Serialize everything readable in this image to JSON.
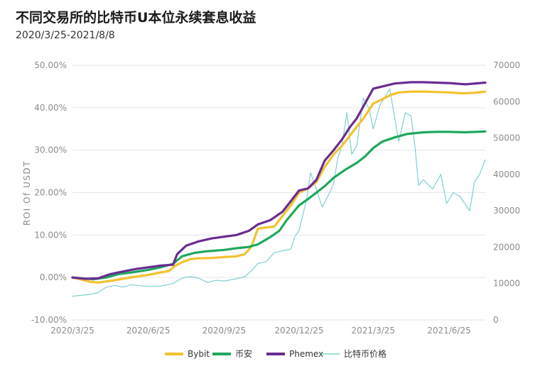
{
  "header": {
    "title": "不同交易所的比特币U本位永续套息收益",
    "subtitle": "2020/3/25-2021/8/8"
  },
  "chart_data": {
    "type": "line",
    "title": "不同交易所的比特币U本位永续套息收益",
    "subtitle": "2020/3/25-2021/8/8",
    "ylabel": "ROI Of USDT",
    "y2label": "",
    "ylim": [
      -10,
      50
    ],
    "y2lim": [
      0,
      70000
    ],
    "x_ticks": [
      "2020/3/25",
      "2020/6/25",
      "2020/9/25",
      "2020/12/25",
      "2021/3/25",
      "2021/6/25"
    ],
    "y_ticks": [
      "-10.00%",
      "0.00%",
      "10.00%",
      "20.00%",
      "30.00%",
      "40.00%",
      "50.00%"
    ],
    "y2_ticks": [
      "0",
      "10000",
      "20000",
      "30000",
      "40000",
      "50000",
      "60000",
      "70000"
    ],
    "x_start": "2020-03-25",
    "x_end": "2021-08-08",
    "grid": "horizontal",
    "legend_position": "bottom",
    "series": [
      {
        "name": "Bybit",
        "axis": "left",
        "color": "#F2C22E",
        "points": [
          [
            "2020-03-25",
            0.0
          ],
          [
            "2020-04-05",
            -0.5
          ],
          [
            "2020-04-15",
            -1.0
          ],
          [
            "2020-04-25",
            -1.2
          ],
          [
            "2020-05-10",
            -0.8
          ],
          [
            "2020-05-25",
            -0.3
          ],
          [
            "2020-06-10",
            0.2
          ],
          [
            "2020-06-25",
            0.6
          ],
          [
            "2020-07-10",
            1.2
          ],
          [
            "2020-07-20",
            1.5
          ],
          [
            "2020-07-28",
            2.8
          ],
          [
            "2020-08-05",
            3.6
          ],
          [
            "2020-08-15",
            4.3
          ],
          [
            "2020-08-25",
            4.5
          ],
          [
            "2020-09-10",
            4.6
          ],
          [
            "2020-09-25",
            4.8
          ],
          [
            "2020-10-10",
            5.0
          ],
          [
            "2020-10-20",
            5.5
          ],
          [
            "2020-10-28",
            7.2
          ],
          [
            "2020-11-05",
            11.5
          ],
          [
            "2020-11-15",
            11.8
          ],
          [
            "2020-11-25",
            12.0
          ],
          [
            "2020-12-05",
            14.5
          ],
          [
            "2020-12-15",
            17.0
          ],
          [
            "2020-12-25",
            20.0
          ],
          [
            "2021-01-05",
            21.0
          ],
          [
            "2021-01-15",
            22.5
          ],
          [
            "2021-01-25",
            26.0
          ],
          [
            "2021-02-05",
            29.0
          ],
          [
            "2021-02-15",
            31.0
          ],
          [
            "2021-02-25",
            33.5
          ],
          [
            "2021-03-05",
            35.5
          ],
          [
            "2021-03-15",
            38.0
          ],
          [
            "2021-03-25",
            41.0
          ],
          [
            "2021-04-05",
            42.0
          ],
          [
            "2021-04-15",
            43.0
          ],
          [
            "2021-04-25",
            43.6
          ],
          [
            "2021-05-10",
            43.8
          ],
          [
            "2021-05-25",
            43.8
          ],
          [
            "2021-06-10",
            43.7
          ],
          [
            "2021-06-25",
            43.6
          ],
          [
            "2021-07-10",
            43.4
          ],
          [
            "2021-07-25",
            43.5
          ],
          [
            "2021-08-08",
            43.8
          ]
        ]
      },
      {
        "name": "币安",
        "axis": "left",
        "color": "#1EA85C",
        "points": [
          [
            "2020-03-25",
            0.0
          ],
          [
            "2020-04-05",
            -0.2
          ],
          [
            "2020-04-20",
            -0.4
          ],
          [
            "2020-05-05",
            0.0
          ],
          [
            "2020-05-20",
            0.8
          ],
          [
            "2020-06-05",
            1.2
          ],
          [
            "2020-06-25",
            1.8
          ],
          [
            "2020-07-10",
            2.4
          ],
          [
            "2020-07-25",
            3.2
          ],
          [
            "2020-08-05",
            5.0
          ],
          [
            "2020-08-20",
            5.8
          ],
          [
            "2020-09-05",
            6.2
          ],
          [
            "2020-09-25",
            6.5
          ],
          [
            "2020-10-10",
            6.9
          ],
          [
            "2020-10-25",
            7.2
          ],
          [
            "2020-11-05",
            7.8
          ],
          [
            "2020-11-20",
            9.5
          ],
          [
            "2020-12-01",
            11.0
          ],
          [
            "2020-12-10",
            13.5
          ],
          [
            "2020-12-25",
            17.0
          ],
          [
            "2021-01-05",
            18.5
          ],
          [
            "2021-01-15",
            20.0
          ],
          [
            "2021-01-25",
            21.5
          ],
          [
            "2021-02-05",
            23.5
          ],
          [
            "2021-02-20",
            25.5
          ],
          [
            "2021-03-05",
            27.0
          ],
          [
            "2021-03-15",
            28.5
          ],
          [
            "2021-03-25",
            30.5
          ],
          [
            "2021-04-05",
            32.0
          ],
          [
            "2021-04-20",
            33.0
          ],
          [
            "2021-05-05",
            33.8
          ],
          [
            "2021-05-25",
            34.2
          ],
          [
            "2021-06-10",
            34.3
          ],
          [
            "2021-06-25",
            34.3
          ],
          [
            "2021-07-15",
            34.2
          ],
          [
            "2021-08-08",
            34.4
          ]
        ]
      },
      {
        "name": "Phemex",
        "axis": "left",
        "color": "#6A2C91",
        "points": [
          [
            "2020-03-25",
            0.0
          ],
          [
            "2020-04-10",
            -0.3
          ],
          [
            "2020-04-25",
            -0.2
          ],
          [
            "2020-05-10",
            0.8
          ],
          [
            "2020-05-25",
            1.4
          ],
          [
            "2020-06-10",
            2.0
          ],
          [
            "2020-06-25",
            2.4
          ],
          [
            "2020-07-10",
            2.8
          ],
          [
            "2020-07-25",
            3.0
          ],
          [
            "2020-07-30",
            5.5
          ],
          [
            "2020-08-10",
            7.5
          ],
          [
            "2020-08-25",
            8.5
          ],
          [
            "2020-09-10",
            9.2
          ],
          [
            "2020-09-25",
            9.6
          ],
          [
            "2020-10-10",
            10.0
          ],
          [
            "2020-10-25",
            11.0
          ],
          [
            "2020-11-05",
            12.5
          ],
          [
            "2020-11-20",
            13.5
          ],
          [
            "2020-12-05",
            15.5
          ],
          [
            "2020-12-15",
            18.0
          ],
          [
            "2020-12-25",
            20.5
          ],
          [
            "2021-01-05",
            21.0
          ],
          [
            "2021-01-15",
            23.0
          ],
          [
            "2021-01-25",
            27.5
          ],
          [
            "2021-02-05",
            30.0
          ],
          [
            "2021-02-15",
            32.5
          ],
          [
            "2021-02-25",
            35.5
          ],
          [
            "2021-03-05",
            37.5
          ],
          [
            "2021-03-15",
            41.0
          ],
          [
            "2021-03-25",
            44.5
          ],
          [
            "2021-04-05",
            45.0
          ],
          [
            "2021-04-20",
            45.7
          ],
          [
            "2021-05-10",
            46.0
          ],
          [
            "2021-05-25",
            46.0
          ],
          [
            "2021-06-10",
            45.9
          ],
          [
            "2021-06-25",
            45.8
          ],
          [
            "2021-07-15",
            45.5
          ],
          [
            "2021-08-08",
            45.9
          ]
        ]
      },
      {
        "name": "比特币价格",
        "axis": "right",
        "color": "#7ECFD3",
        "points": [
          [
            "2020-03-25",
            6500
          ],
          [
            "2020-04-05",
            6800
          ],
          [
            "2020-04-15",
            7000
          ],
          [
            "2020-04-25",
            7500
          ],
          [
            "2020-05-05",
            9000
          ],
          [
            "2020-05-15",
            9500
          ],
          [
            "2020-05-25",
            9000
          ],
          [
            "2020-06-05",
            9700
          ],
          [
            "2020-06-15",
            9400
          ],
          [
            "2020-06-25",
            9200
          ],
          [
            "2020-07-10",
            9300
          ],
          [
            "2020-07-25",
            10000
          ],
          [
            "2020-08-05",
            11500
          ],
          [
            "2020-08-15",
            11900
          ],
          [
            "2020-08-25",
            11500
          ],
          [
            "2020-09-05",
            10300
          ],
          [
            "2020-09-15",
            10900
          ],
          [
            "2020-09-25",
            10700
          ],
          [
            "2020-10-10",
            11300
          ],
          [
            "2020-10-20",
            11900
          ],
          [
            "2020-10-28",
            13500
          ],
          [
            "2020-11-05",
            15500
          ],
          [
            "2020-11-15",
            16000
          ],
          [
            "2020-11-25",
            18500
          ],
          [
            "2020-12-05",
            19000
          ],
          [
            "2020-12-15",
            19500
          ],
          [
            "2020-12-20",
            23000
          ],
          [
            "2020-12-25",
            24500
          ],
          [
            "2021-01-03",
            33000
          ],
          [
            "2021-01-08",
            40500
          ],
          [
            "2021-01-15",
            36000
          ],
          [
            "2021-01-22",
            31000
          ],
          [
            "2021-01-29",
            34000
          ],
          [
            "2021-02-05",
            37500
          ],
          [
            "2021-02-10",
            44500
          ],
          [
            "2021-02-15",
            48000
          ],
          [
            "2021-02-21",
            57000
          ],
          [
            "2021-02-27",
            45500
          ],
          [
            "2021-03-05",
            48000
          ],
          [
            "2021-03-13",
            61000
          ],
          [
            "2021-03-20",
            58000
          ],
          [
            "2021-03-25",
            52500
          ],
          [
            "2021-04-02",
            59000
          ],
          [
            "2021-04-14",
            63500
          ],
          [
            "2021-04-25",
            49000
          ],
          [
            "2021-05-03",
            57000
          ],
          [
            "2021-05-10",
            56000
          ],
          [
            "2021-05-15",
            47000
          ],
          [
            "2021-05-19",
            37000
          ],
          [
            "2021-05-25",
            38500
          ],
          [
            "2021-06-05",
            36000
          ],
          [
            "2021-06-15",
            40000
          ],
          [
            "2021-06-22",
            32000
          ],
          [
            "2021-06-30",
            35000
          ],
          [
            "2021-07-08",
            34000
          ],
          [
            "2021-07-20",
            30000
          ],
          [
            "2021-07-26",
            38000
          ],
          [
            "2021-08-01",
            40000
          ],
          [
            "2021-08-08",
            44000
          ]
        ]
      }
    ]
  }
}
